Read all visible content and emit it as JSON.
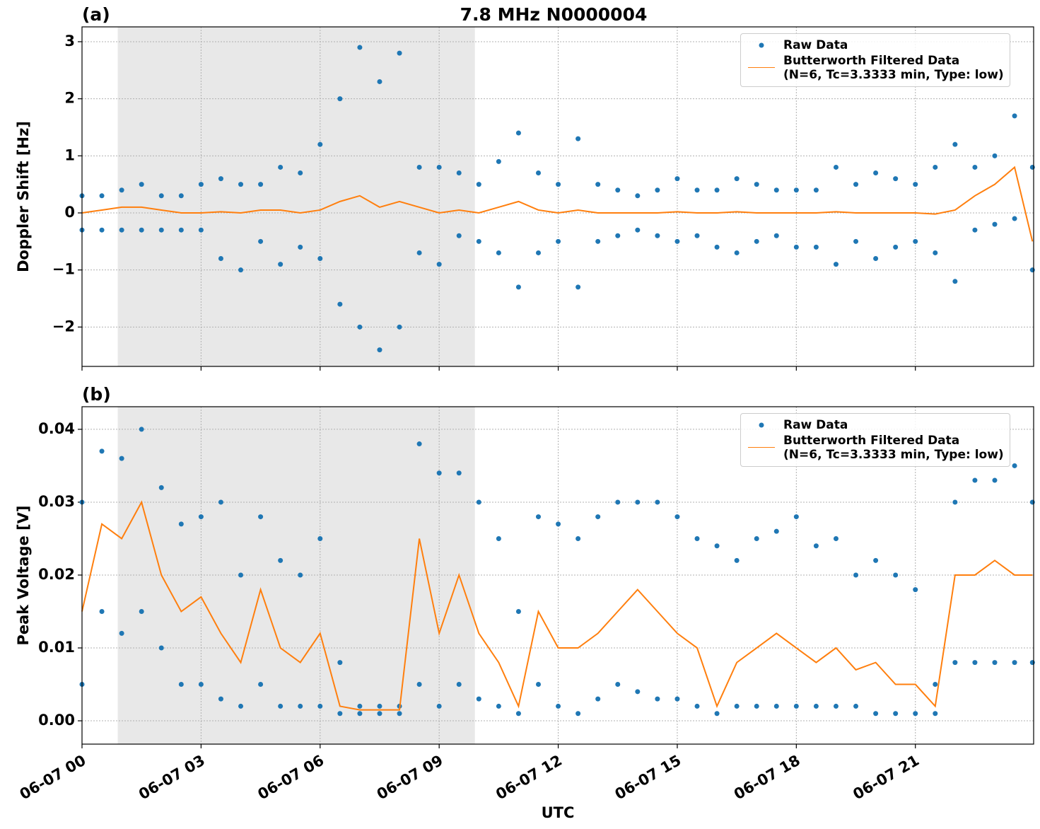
{
  "chart_data": [
    {
      "type": "line",
      "label": "(a)",
      "title": "7.8 MHz N0000004",
      "ylabel": "Doppler Shift [Hz]",
      "xlim": [
        0,
        23.98
      ],
      "ylim": [
        -2.69,
        3.26
      ],
      "shade": [
        0.9,
        9.9
      ],
      "grid": true,
      "xticks": [
        0,
        3,
        6,
        9,
        12,
        15,
        18,
        21
      ],
      "yticks": [
        {
          "value": -2,
          "label": "−2"
        },
        {
          "value": -1,
          "label": "−1"
        },
        0,
        1,
        2,
        3
      ],
      "x": [
        0,
        0.5,
        1,
        1.5,
        2,
        2.5,
        3,
        3.5,
        4,
        4.5,
        5,
        5.5,
        6,
        6.5,
        7,
        7.5,
        8,
        8.5,
        9,
        9.5,
        10,
        10.5,
        11,
        11.5,
        12,
        12.5,
        13,
        13.5,
        14,
        14.5,
        15,
        15.5,
        16,
        16.5,
        17,
        17.5,
        18,
        18.5,
        19,
        19.5,
        20,
        20.5,
        21,
        21.5,
        22,
        22.5,
        23,
        23.5,
        23.95
      ],
      "series": [
        {
          "name": "Raw Data",
          "color": "#1f77b4",
          "mode": "markers",
          "x": [
            0,
            0,
            0.5,
            0.5,
            1,
            1,
            1.5,
            1.5,
            2,
            2,
            2.5,
            2.5,
            3,
            3,
            3.5,
            3.5,
            4,
            4,
            4.5,
            4.5,
            5,
            5,
            5.5,
            5.5,
            6,
            6,
            6.5,
            6.5,
            7,
            7,
            7.5,
            7.5,
            8,
            8,
            8.5,
            8.5,
            9,
            9,
            9.5,
            9.5,
            10,
            10,
            10.5,
            10.5,
            11,
            11,
            11.5,
            11.5,
            12,
            12,
            12.5,
            12.5,
            13,
            13,
            13.5,
            13.5,
            14,
            14,
            14.5,
            14.5,
            15,
            15,
            15.5,
            15.5,
            16,
            16,
            16.5,
            16.5,
            17,
            17,
            17.5,
            17.5,
            18,
            18,
            18.5,
            18.5,
            19,
            19,
            19.5,
            19.5,
            20,
            20,
            20.5,
            20.5,
            21,
            21,
            21.5,
            21.5,
            22,
            22,
            22.5,
            22.5,
            23,
            23,
            23.5,
            23.5,
            23.95,
            23.95
          ],
          "values": [
            0.3,
            -0.3,
            0.3,
            -0.3,
            0.4,
            -0.3,
            0.5,
            -0.3,
            0.3,
            -0.3,
            0.3,
            -0.3,
            0.5,
            -0.3,
            0.6,
            -0.8,
            0.5,
            -1.0,
            0.5,
            -0.5,
            0.8,
            -0.9,
            0.7,
            -0.6,
            1.2,
            -0.8,
            2.0,
            -1.6,
            2.9,
            -2.0,
            2.3,
            -2.4,
            2.8,
            -2.0,
            0.8,
            -0.7,
            0.8,
            -0.9,
            0.7,
            -0.4,
            0.5,
            -0.5,
            0.9,
            -0.7,
            1.4,
            -1.3,
            0.7,
            -0.7,
            0.5,
            -0.5,
            1.3,
            -1.3,
            0.5,
            -0.5,
            0.4,
            -0.4,
            0.3,
            -0.3,
            0.4,
            -0.4,
            0.6,
            -0.5,
            0.4,
            -0.4,
            0.4,
            -0.6,
            0.6,
            -0.7,
            0.5,
            -0.5,
            0.4,
            -0.4,
            0.4,
            -0.6,
            0.4,
            -0.6,
            0.8,
            -0.9,
            0.5,
            -0.5,
            0.7,
            -0.8,
            0.6,
            -0.6,
            0.5,
            -0.5,
            0.8,
            -0.7,
            1.2,
            -1.2,
            0.8,
            -0.3,
            1.0,
            -0.2,
            1.7,
            -0.1,
            0.8,
            -1.0
          ]
        },
        {
          "name": "Butterworth Filtered Data\n(N=6, Tc=3.3333 min, Type: low)",
          "color": "#ff7f0e",
          "mode": "line",
          "values": [
            0,
            0.05,
            0.1,
            0.1,
            0.05,
            0,
            0,
            0.02,
            0,
            0.05,
            0.05,
            0,
            0.05,
            0.2,
            0.3,
            0.1,
            0.2,
            0.1,
            0,
            0.05,
            0,
            0.1,
            0.2,
            0.05,
            0,
            0.05,
            0,
            0,
            0,
            0,
            0.02,
            0,
            0,
            0.02,
            0,
            0,
            0,
            0,
            0.02,
            0,
            0,
            0,
            0,
            -0.02,
            0.05,
            0.3,
            0.5,
            0.8,
            -0.5
          ]
        }
      ]
    },
    {
      "type": "line",
      "label": "(b)",
      "ylabel": "Peak Voltage [V]",
      "xlabel": "UTC",
      "xlim": [
        0,
        23.98
      ],
      "ylim": [
        -0.0032,
        0.0431
      ],
      "shade": [
        0.9,
        9.9
      ],
      "grid": true,
      "xticks": [
        {
          "value": 0,
          "label": "06-07 00"
        },
        {
          "value": 3,
          "label": "06-07 03"
        },
        {
          "value": 6,
          "label": "06-07 06"
        },
        {
          "value": 9,
          "label": "06-07 09"
        },
        {
          "value": 12,
          "label": "06-07 12"
        },
        {
          "value": 15,
          "label": "06-07 15"
        },
        {
          "value": 18,
          "label": "06-07 18"
        },
        {
          "value": 21,
          "label": "06-07 21"
        }
      ],
      "yticks": [
        {
          "value": 0,
          "label": "0.00"
        },
        {
          "value": 0.01,
          "label": "0.01"
        },
        {
          "value": 0.02,
          "label": "0.02"
        },
        {
          "value": 0.03,
          "label": "0.03"
        },
        {
          "value": 0.04,
          "label": "0.04"
        }
      ],
      "x": [
        0,
        0.5,
        1,
        1.5,
        2,
        2.5,
        3,
        3.5,
        4,
        4.5,
        5,
        5.5,
        6,
        6.5,
        7,
        7.5,
        8,
        8.5,
        9,
        9.5,
        10,
        10.5,
        11,
        11.5,
        12,
        12.5,
        13,
        13.5,
        14,
        14.5,
        15,
        15.5,
        16,
        16.5,
        17,
        17.5,
        18,
        18.5,
        19,
        19.5,
        20,
        20.5,
        21,
        21.5,
        22,
        22.5,
        23,
        23.5,
        23.95
      ],
      "series": [
        {
          "name": "Raw Data",
          "color": "#1f77b4",
          "mode": "markers",
          "x": [
            0,
            0,
            0.5,
            0.5,
            1,
            1,
            1.5,
            1.5,
            2,
            2,
            2.5,
            2.5,
            3,
            3,
            3.5,
            3.5,
            4,
            4,
            4.5,
            4.5,
            5,
            5,
            5.5,
            5.5,
            6,
            6,
            6.5,
            6.5,
            7,
            7,
            7.5,
            7.5,
            8,
            8,
            8.5,
            8.5,
            9,
            9,
            9.5,
            9.5,
            10,
            10,
            10.5,
            10.5,
            11,
            11,
            11.5,
            11.5,
            12,
            12,
            12.5,
            12.5,
            13,
            13,
            13.5,
            13.5,
            14,
            14,
            14.5,
            14.5,
            15,
            15,
            15.5,
            15.5,
            16,
            16,
            16.5,
            16.5,
            17,
            17,
            17.5,
            17.5,
            18,
            18,
            18.5,
            18.5,
            19,
            19,
            19.5,
            19.5,
            20,
            20,
            20.5,
            20.5,
            21,
            21,
            21.5,
            21.5,
            22,
            22,
            22.5,
            22.5,
            23,
            23,
            23.5,
            23.5,
            23.95,
            23.95
          ],
          "values": [
            0.03,
            0.005,
            0.037,
            0.015,
            0.036,
            0.012,
            0.04,
            0.015,
            0.032,
            0.01,
            0.027,
            0.005,
            0.028,
            0.005,
            0.03,
            0.003,
            0.02,
            0.002,
            0.028,
            0.005,
            0.022,
            0.002,
            0.02,
            0.002,
            0.025,
            0.002,
            0.008,
            0.001,
            0.002,
            0.001,
            0.002,
            0.001,
            0.002,
            0.001,
            0.038,
            0.005,
            0.034,
            0.002,
            0.034,
            0.005,
            0.03,
            0.003,
            0.025,
            0.002,
            0.015,
            0.001,
            0.028,
            0.005,
            0.027,
            0.002,
            0.025,
            0.001,
            0.028,
            0.003,
            0.03,
            0.005,
            0.03,
            0.004,
            0.03,
            0.003,
            0.028,
            0.003,
            0.025,
            0.002,
            0.024,
            0.001,
            0.022,
            0.002,
            0.025,
            0.002,
            0.026,
            0.002,
            0.028,
            0.002,
            0.024,
            0.002,
            0.025,
            0.002,
            0.02,
            0.002,
            0.022,
            0.001,
            0.02,
            0.001,
            0.018,
            0.001,
            0.005,
            0.001,
            0.03,
            0.008,
            0.033,
            0.008,
            0.033,
            0.008,
            0.035,
            0.008,
            0.03,
            0.008
          ]
        },
        {
          "name": "Butterworth Filtered Data\n(N=6, Tc=3.3333 min, Type: low)",
          "color": "#ff7f0e",
          "mode": "line",
          "values": [
            0.015,
            0.027,
            0.025,
            0.03,
            0.02,
            0.015,
            0.017,
            0.012,
            0.008,
            0.018,
            0.01,
            0.008,
            0.012,
            0.002,
            0.0015,
            0.0015,
            0.0015,
            0.025,
            0.012,
            0.02,
            0.012,
            0.008,
            0.002,
            0.015,
            0.01,
            0.01,
            0.012,
            0.015,
            0.018,
            0.015,
            0.012,
            0.01,
            0.002,
            0.008,
            0.01,
            0.012,
            0.01,
            0.008,
            0.01,
            0.007,
            0.008,
            0.005,
            0.005,
            0.002,
            0.02,
            0.02,
            0.022,
            0.02,
            0.02
          ]
        }
      ]
    }
  ]
}
